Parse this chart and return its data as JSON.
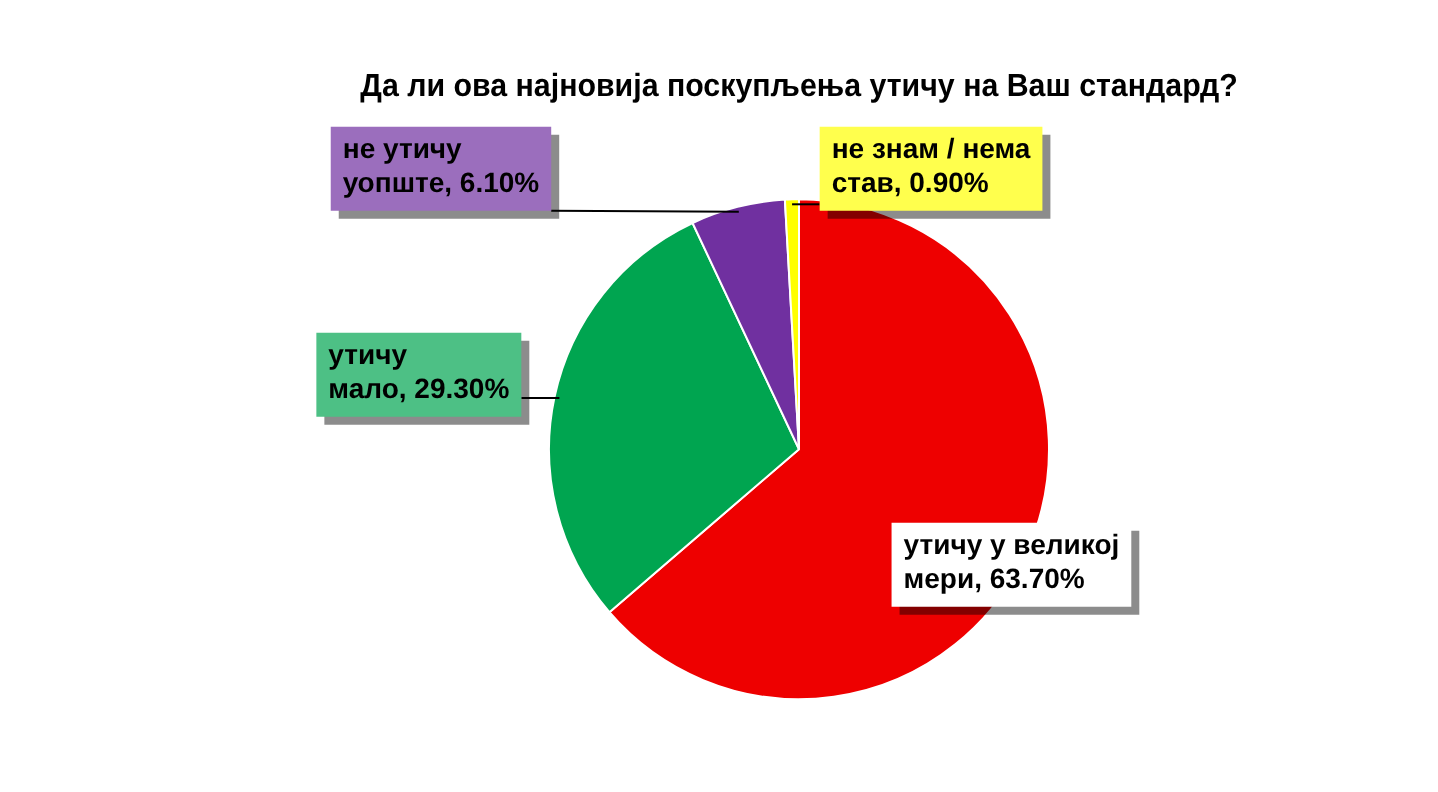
{
  "chart_data": {
    "type": "pie",
    "title": "Да ли ова најновија поскупљења утичу на Ваш стандард?",
    "categories": [
      "утичу у великој мери",
      "утичу мало",
      "не утичу уопште",
      "не знам / нема став"
    ],
    "values": [
      63.7,
      29.3,
      6.1,
      0.9
    ],
    "colors": [
      "#ee0000",
      "#00a550",
      "#7030a0",
      "#ffff00"
    ],
    "value_labels": [
      "63.70%",
      "29.30%",
      "6.10%",
      "0.90%"
    ],
    "legend": false
  }
}
